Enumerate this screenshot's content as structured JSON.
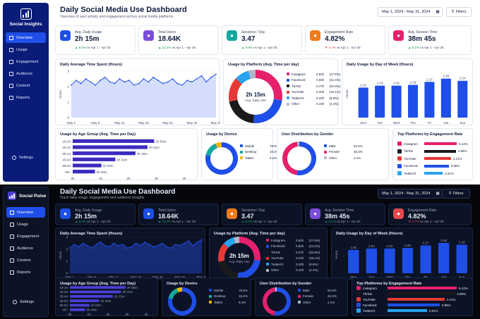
{
  "light": {
    "app_name": "Social Insights",
    "nav": [
      "Overview",
      "Usage",
      "Engagement",
      "Audience",
      "Content",
      "Reports"
    ],
    "settings_label": "Settings",
    "title": "Daily Social Media Use Dashboard",
    "subtitle": "Overview of user activity and engagement across social media platforms",
    "date_range": "May 1, 2024 - May 31, 2024",
    "filters_label": "Filters",
    "kpis": [
      {
        "label": "Avg. Daily Usage",
        "value": "2h 15m",
        "delta": "▲ 8.2%",
        "note": "vs Apr 1 - Apr 30",
        "color": "#1f4fe8",
        "icon": "clock-icon",
        "up": true
      },
      {
        "label": "Total Users",
        "value": "18.64K",
        "delta": "▲ 12.3%",
        "note": "vs Apr 1 - Apr 30",
        "color": "#7c4ddc",
        "icon": "users-icon",
        "up": true
      },
      {
        "label": "Sessions / Day",
        "value": "3.47",
        "delta": "▲ 5.6%",
        "note": "vs Apr 1 - Apr 30",
        "color": "#13a8a0",
        "icon": "phone-icon",
        "up": true
      },
      {
        "label": "Engagement Rate",
        "value": "4.82%",
        "delta": "▼ 4.7%",
        "note": "vs Apr 1 - Apr 30",
        "color": "#f07a1a",
        "icon": "activity-icon",
        "up": false
      },
      {
        "label": "Avg. Session Time",
        "value": "38m 45s",
        "delta": "▲ 6.1%",
        "note": "vs Apr 1 - Apr 30",
        "color": "#e5206c",
        "icon": "timer-icon",
        "up": true
      }
    ],
    "donut_center": {
      "value": "2h 15m",
      "label": "Avg. Daily Use"
    }
  },
  "dark": {
    "app_name": "Social Pulse",
    "nav": [
      "Overview",
      "Usage",
      "Engagement",
      "Audience",
      "Content",
      "Reports"
    ],
    "settings_label": "Settings",
    "title": "Daily Social Media Use Dashboard",
    "subtitle": "Track daily usage, engagement and audience insights",
    "date_range": "May 1, 2024 - May 31, 2024",
    "filters_label": "Filters",
    "kpis": [
      {
        "label": "Avg. Daily Usage",
        "value": "2h 15m",
        "delta": "▲ 8.2%",
        "note": "vs Apr 1 - Apr 30",
        "color": "#1f4fe8",
        "icon": "clock-icon",
        "up": true
      },
      {
        "label": "Total Users",
        "value": "18.64K",
        "delta": "▲ 12.3%",
        "note": "vs Apr 1 - Apr 30",
        "color": "#1f4fe8",
        "icon": "users-icon",
        "up": true
      },
      {
        "label": "Sessions / Day",
        "value": "3.47",
        "delta": "▲ 5.6%",
        "note": "vs Apr 1 - Apr 30",
        "color": "#f07a1a",
        "icon": "phone-icon",
        "up": true
      },
      {
        "label": "Avg. Session Time",
        "value": "38m 45s",
        "delta": "▲ 6.1%",
        "note": "vs Apr 1 - Apr 30",
        "color": "#7c4ddc",
        "icon": "timer-icon",
        "up": true
      },
      {
        "label": "Engagement Rate",
        "value": "4.82%",
        "delta": "▼ 4.7%",
        "note": "vs Apr 1 - Apr 30",
        "color": "#e5484d",
        "icon": "activity-icon",
        "up": false
      }
    ],
    "donut_center": {
      "value": "2h 15m",
      "label": "Avg. Daily Use"
    }
  },
  "chart_data": [
    {
      "id": "time",
      "type": "area",
      "title": "Daily Average Time Spent (Hours)",
      "ylabel": "Hours",
      "ylim": [
        0,
        3
      ],
      "yticks": [
        0,
        1,
        2,
        3
      ],
      "xticks": [
        "May 1",
        "May 6",
        "May 11",
        "May 16",
        "May 21",
        "May 26",
        "May 31"
      ],
      "values": [
        2.1,
        2.4,
        2.2,
        2.5,
        2.3,
        2.1,
        2.4,
        2.6,
        2.3,
        2.2,
        2.5,
        2.3,
        2.4,
        2.1,
        2.2,
        2.5,
        2.3,
        2.6,
        2.4,
        2.2,
        2.3,
        2.5,
        2.2,
        2.1,
        2.4,
        2.3,
        2.5,
        2.7,
        2.3,
        2.6,
        2.8
      ]
    },
    {
      "id": "platform",
      "type": "pie",
      "title": "Usage by Platform (Avg. Time per day)",
      "slices": [
        {
          "name": "Instagram",
          "value": "0.62h",
          "pct": "(27.6%)",
          "share": 27.6,
          "color": "#e5206c"
        },
        {
          "name": "Facebook",
          "value": "0.55h",
          "pct": "(24.4%)",
          "share": 24.4,
          "color": "#1f4fe8"
        },
        {
          "name": "TikTok",
          "value": "0.47h",
          "pct": "(20.9%)",
          "share": 20.9,
          "color": "#1a1a1a"
        },
        {
          "name": "YouTube",
          "value": "0.34h",
          "pct": "(15.1%)",
          "share": 15.1,
          "color": "#e53935"
        },
        {
          "name": "Twitter/X",
          "value": "0.20h",
          "pct": "(8.9%)",
          "share": 8.9,
          "color": "#29a3ef"
        },
        {
          "name": "Other",
          "value": "0.10h",
          "pct": "(4.4%)",
          "share": 4.4,
          "color": "#b0b7c6"
        }
      ]
    },
    {
      "id": "week",
      "type": "bar",
      "title": "Daily Usage by Day of Week (Hours)",
      "ylabel": "Hours",
      "ylim": [
        0,
        3
      ],
      "categories": [
        "Mon",
        "Tue",
        "Wed",
        "Thu",
        "Fri",
        "Sat",
        "Sun"
      ],
      "values": [
        1.91,
        2.03,
        2.03,
        2.08,
        2.27,
        2.48,
        2.34
      ]
    },
    {
      "id": "age",
      "type": "bar",
      "orientation": "horizontal",
      "title": "Usage by Age Group (Avg. Time per Day)",
      "categories": [
        "18-24",
        "25-34",
        "35-44",
        "45-54",
        "55-64",
        "65+"
      ],
      "labels": [
        "2h 55m",
        "2h 41m",
        "2h 15m",
        "1h 32m",
        "1h 02m",
        "0h 48m"
      ],
      "values": [
        2.92,
        2.68,
        2.25,
        1.53,
        1.03,
        0.8
      ],
      "xticks": [
        "0h",
        "1h",
        "2h",
        "3h",
        "4h"
      ],
      "xlim": [
        0,
        4
      ]
    },
    {
      "id": "device",
      "type": "pie",
      "title": "Usage by Device",
      "slices": [
        {
          "name": "Mobile",
          "pct": "78.6%",
          "share": 78.6,
          "color": "#1f4fe8"
        },
        {
          "name": "Desktop",
          "pct": "15.2%",
          "share": 15.2,
          "color": "#13a8a0"
        },
        {
          "name": "Tablet",
          "pct": "6.2%",
          "share": 6.2,
          "color": "#f4b400"
        }
      ]
    },
    {
      "id": "gender",
      "type": "pie",
      "title": "User Distribution by Gender",
      "slices": [
        {
          "name": "Male",
          "pct": "52.6%",
          "share": 52.6,
          "color": "#1f4fe8"
        },
        {
          "name": "Female",
          "pct": "45.3%",
          "share": 45.3,
          "color": "#e5206c"
        },
        {
          "name": "Other",
          "pct": "2.1%",
          "share": 2.1,
          "color": "#b0b7c6"
        }
      ]
    },
    {
      "id": "engage",
      "type": "bar",
      "orientation": "horizontal",
      "title": "Top Platforms by Engagement Rate",
      "categories": [
        "Instagram",
        "TikTok",
        "YouTube",
        "Facebook",
        "Twitter/X"
      ],
      "values": [
        5.12,
        4.98,
        4.21,
        3.85,
        2.91
      ],
      "labels": [
        "5.12%",
        "4.98%",
        "4.21%",
        "3.85%",
        "2.91%"
      ],
      "colors": [
        "#e5206c",
        "#1a1a1a",
        "#e53935",
        "#1f4fe8",
        "#29a3ef"
      ]
    }
  ]
}
